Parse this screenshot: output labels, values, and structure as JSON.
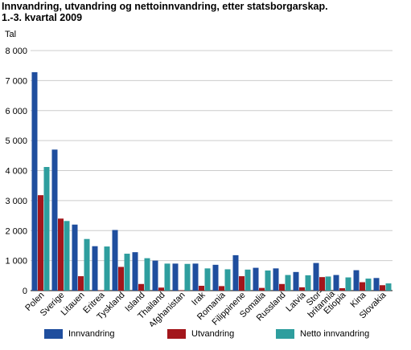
{
  "title": "Innvandring, utvandring og nettoinnvandring, etter statsborgarskap.",
  "subtitle": "1.-3. kvartal 2009",
  "chart_data": {
    "type": "bar",
    "ylabel": "Tal",
    "ylim": [
      0,
      8000
    ],
    "yticks": [
      "0",
      "1 000",
      "2 000",
      "3 000",
      "4 000",
      "5 000",
      "6 000",
      "7 000",
      "8 000"
    ],
    "grid": true,
    "legend_position": "bottom",
    "categories": [
      "Polen",
      "Sverige",
      "Litauen",
      "Eritrea",
      "Tyskland",
      "Island",
      "Thailand",
      "Afghanistan",
      "Irak",
      "Romania",
      "Filippinene",
      "Somalia",
      "Russland",
      "Latvia",
      "Stor-britannia",
      "Etiopia",
      "Kina",
      "Slovakia"
    ],
    "series": [
      {
        "name": "Innvandring",
        "color": "#1f4e9e",
        "values": [
          7280,
          4700,
          2200,
          1480,
          2020,
          1280,
          1000,
          900,
          900,
          860,
          1180,
          760,
          740,
          620,
          920,
          520,
          680,
          420
        ]
      },
      {
        "name": "Utvandring",
        "color": "#a3161b",
        "values": [
          3180,
          2400,
          480,
          10,
          790,
          220,
          100,
          10,
          160,
          150,
          480,
          90,
          220,
          110,
          450,
          80,
          280,
          180
        ]
      },
      {
        "name": "Netto innvandring",
        "color": "#2e9e9e",
        "values": [
          4120,
          2320,
          1720,
          1470,
          1230,
          1080,
          900,
          890,
          740,
          710,
          700,
          670,
          520,
          510,
          470,
          440,
          400,
          240
        ]
      }
    ]
  }
}
